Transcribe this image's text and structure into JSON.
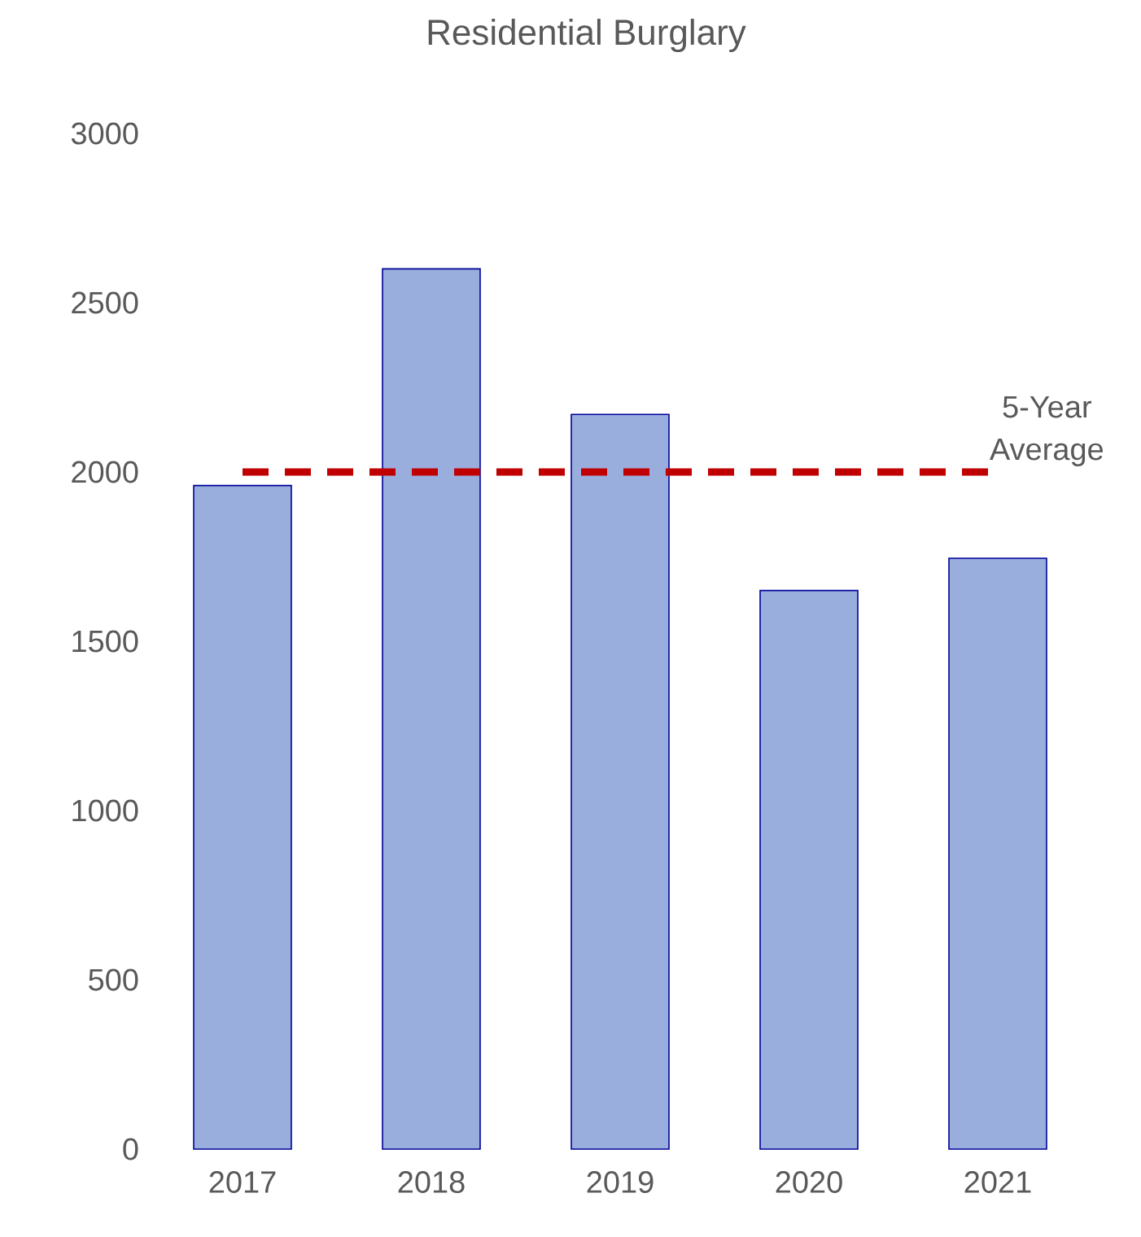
{
  "chart_data": {
    "type": "bar",
    "title": "Residential Burglary",
    "categories": [
      "2017",
      "2018",
      "2019",
      "2020",
      "2021"
    ],
    "values": [
      1960,
      2600,
      2170,
      1650,
      1745
    ],
    "color": "#9aaede",
    "ylim": [
      0,
      3000
    ],
    "yticks": [
      0,
      500,
      1000,
      1500,
      2000,
      2500,
      3000
    ],
    "ref_lines": [
      {
        "axis": "y",
        "value": 2000,
        "label": "5-Year Average",
        "color": "#c00000",
        "line_style": "dashed"
      }
    ]
  }
}
